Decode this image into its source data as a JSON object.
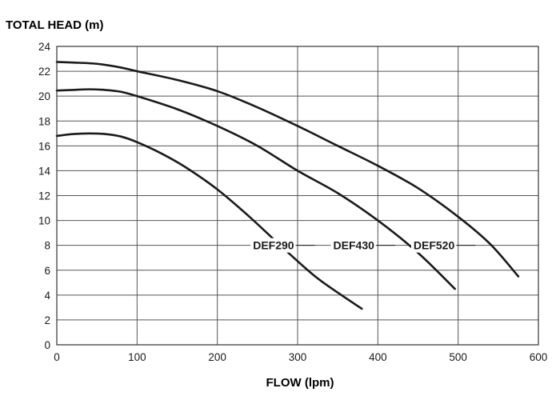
{
  "chart_data": {
    "type": "line",
    "ylabel": "TOTAL HEAD (m)",
    "xlabel": "FLOW (lpm)",
    "xlim": [
      0,
      600
    ],
    "ylim": [
      0,
      24
    ],
    "xticks": [
      0,
      100,
      200,
      300,
      400,
      500,
      600
    ],
    "yticks": [
      0,
      2,
      4,
      6,
      8,
      10,
      12,
      14,
      16,
      18,
      20,
      22,
      24
    ],
    "grid": true,
    "legend": "inline-labels",
    "series": [
      {
        "name": "DEF290",
        "label_at": [
          270,
          8
        ],
        "x": [
          0,
          20,
          40,
          60,
          80,
          100,
          130,
          160,
          200,
          240,
          280,
          320,
          350,
          380
        ],
        "y": [
          16.8,
          16.95,
          17.0,
          16.95,
          16.75,
          16.3,
          15.4,
          14.3,
          12.5,
          10.3,
          7.9,
          5.6,
          4.2,
          2.9
        ]
      },
      {
        "name": "DEF430",
        "label_at": [
          370,
          8
        ],
        "x": [
          0,
          20,
          40,
          60,
          80,
          100,
          150,
          200,
          250,
          300,
          350,
          400,
          450,
          496
        ],
        "y": [
          20.45,
          20.5,
          20.55,
          20.5,
          20.35,
          20.0,
          18.95,
          17.6,
          16.0,
          14.0,
          12.2,
          10.0,
          7.4,
          4.5
        ]
      },
      {
        "name": "DEF520",
        "label_at": [
          470,
          8
        ],
        "x": [
          0,
          20,
          50,
          80,
          100,
          150,
          200,
          250,
          300,
          350,
          400,
          450,
          500,
          540,
          575
        ],
        "y": [
          22.75,
          22.7,
          22.6,
          22.3,
          22.0,
          21.3,
          20.4,
          19.1,
          17.6,
          16.0,
          14.4,
          12.6,
          10.3,
          8.1,
          5.5
        ]
      }
    ]
  }
}
